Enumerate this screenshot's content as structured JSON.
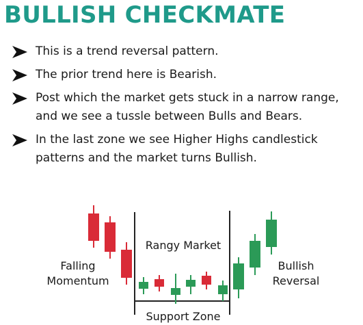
{
  "title": "BULLISH CHECKMATE",
  "bullets": [
    "This is a trend reversal pattern.",
    "The prior trend here is Bearish.",
    "Post which the market gets stuck in a narrow range, and we see a tussle between Bulls and Bears.",
    "In the last zone we see Higher Highs candlestick patterns and the market turns Bullish."
  ],
  "diagram": {
    "falling_label_1": "Falling",
    "falling_label_2": "Momentum",
    "rangy_label": "Rangy Market",
    "support_label": "Support Zone",
    "bullish_label_1": "Bullish",
    "bullish_label_2": "Reversal"
  },
  "colors": {
    "title": "#1f9a8a",
    "bear_candle": "#d92b37",
    "bull_candle": "#2b9a57",
    "divider": "#222222"
  },
  "icons": {
    "bullet": "arrow-bullet-icon"
  }
}
